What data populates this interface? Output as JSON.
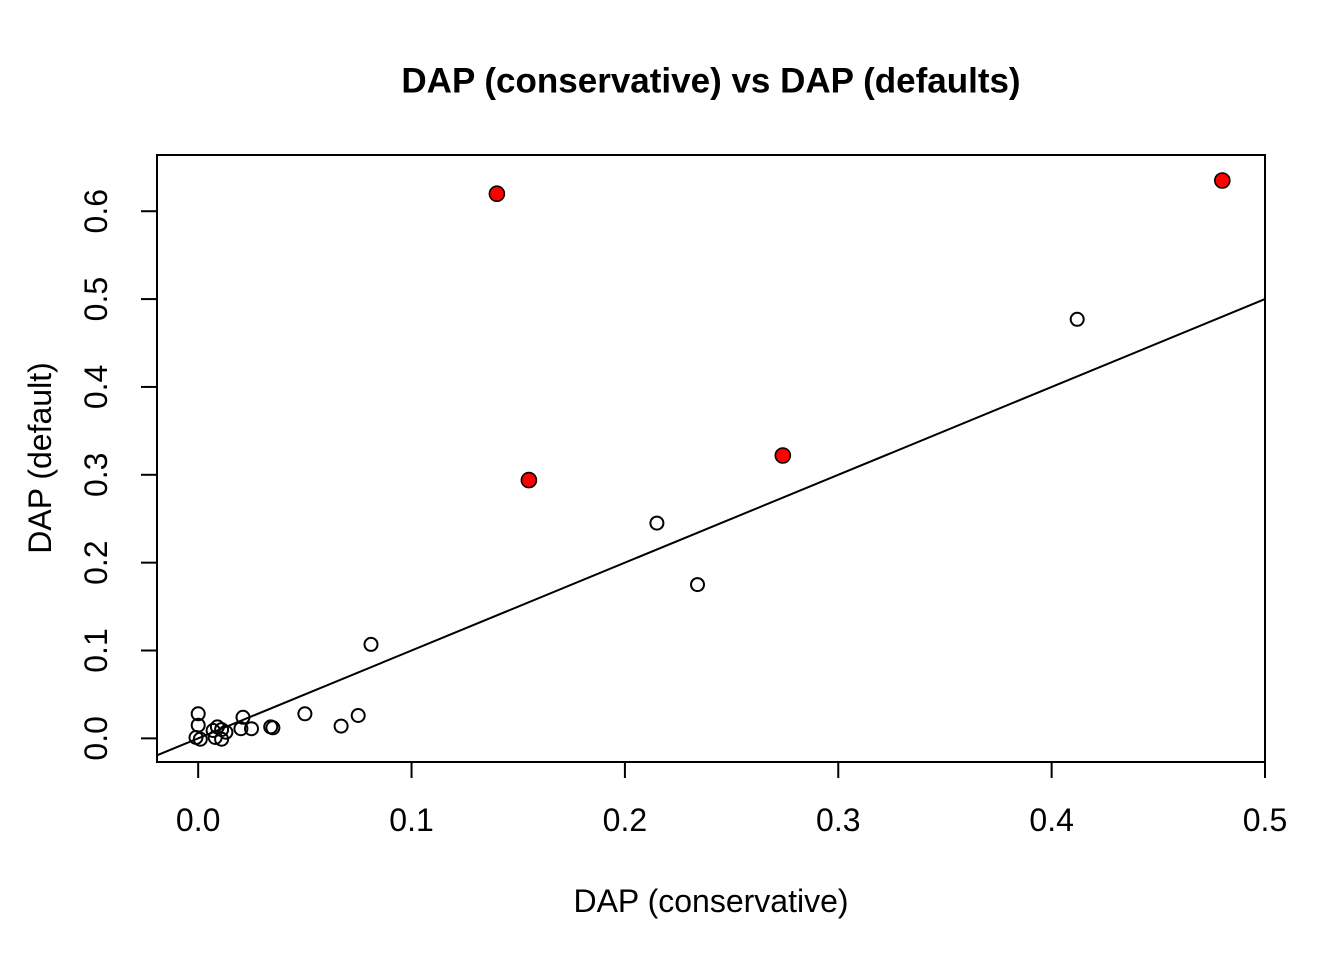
{
  "chart_data": {
    "type": "scatter",
    "title": "DAP (conservative) vs DAP (defaults)",
    "xlabel": "DAP (conservative)",
    "ylabel": "DAP (default)",
    "xlim": [
      -0.0193,
      0.5
    ],
    "ylim": [
      -0.0269,
      0.664
    ],
    "x_ticks": [
      0.0,
      0.1,
      0.2,
      0.3,
      0.4,
      0.5
    ],
    "x_tick_labels": [
      "0.0",
      "0.1",
      "0.2",
      "0.3",
      "0.4",
      "0.5"
    ],
    "y_ticks": [
      0.0,
      0.1,
      0.2,
      0.3,
      0.4,
      0.5,
      0.6
    ],
    "y_tick_labels": [
      "0.0",
      "0.1",
      "0.2",
      "0.3",
      "0.4",
      "0.5",
      "0.6"
    ],
    "grid": false,
    "reference_line": {
      "name": "identity-line",
      "slope": 1,
      "intercept": 0,
      "color": "#000000"
    },
    "series": [
      {
        "name": "default points",
        "marker": "open-circle",
        "fill": "none",
        "stroke": "#000000",
        "radius": 6.5,
        "points": [
          [
            -0.001,
            0.001
          ],
          [
            0.0,
            0.028
          ],
          [
            0.0,
            0.015
          ],
          [
            0.001,
            -0.001
          ],
          [
            0.007,
            0.009
          ],
          [
            0.008,
            0.001
          ],
          [
            0.009,
            0.013
          ],
          [
            0.011,
            0.01
          ],
          [
            0.011,
            -0.001
          ],
          [
            0.013,
            0.007
          ],
          [
            0.02,
            0.011
          ],
          [
            0.021,
            0.024
          ],
          [
            0.025,
            0.011
          ],
          [
            0.034,
            0.013
          ],
          [
            0.035,
            0.012
          ],
          [
            0.05,
            0.028
          ],
          [
            0.067,
            0.014
          ],
          [
            0.075,
            0.026
          ],
          [
            0.081,
            0.107
          ],
          [
            0.215,
            0.245
          ],
          [
            0.234,
            0.175
          ],
          [
            0.412,
            0.477
          ]
        ]
      },
      {
        "name": "highlighted points",
        "marker": "filled-circle",
        "fill": "#ff0000",
        "stroke": "#000000",
        "radius": 7.5,
        "points": [
          [
            0.14,
            0.62
          ],
          [
            0.155,
            0.294
          ],
          [
            0.274,
            0.322
          ],
          [
            0.48,
            0.635
          ]
        ]
      }
    ]
  }
}
